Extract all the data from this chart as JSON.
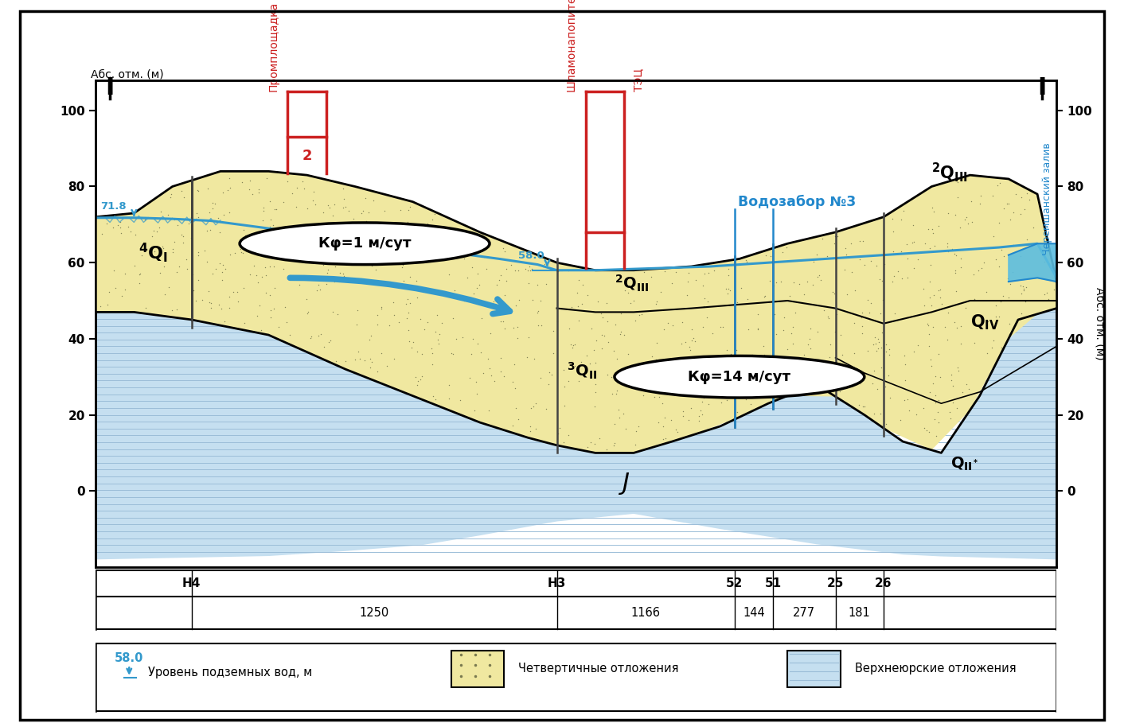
{
  "quaternary_color": "#f0e8a0",
  "jurassic_color": "#c5dff0",
  "jurassic_line_color": "#9bbdd8",
  "groundwater_color": "#3399cc",
  "red_color": "#cc2020",
  "blue_color": "#2288cc",
  "legend_text1": "Уровень подземных вод, м",
  "legend_text2": "Четвертичные отложения",
  "legend_text3": "Верхнеюрские отложения",
  "kf1_text": "Кφ=1 м/сут",
  "kf14_text": "Кφ=14 м/сут",
  "promploshchadka": "Промплощадка",
  "shlam": "Шламонапопители",
  "tec": "ТЭЦ",
  "vodozbor": "Водозабор №3",
  "cheremsh": "Черемшанский залив",
  "abs_label": "Абс. отм. (м)",
  "section_I": "I",
  "well_names": [
    "Н4",
    "Н3",
    "52",
    "51",
    "25",
    "26"
  ],
  "dist_values": [
    "1250",
    "1166",
    "144",
    "277",
    "181"
  ],
  "label_58": "58.0",
  "label_718": "71.8"
}
